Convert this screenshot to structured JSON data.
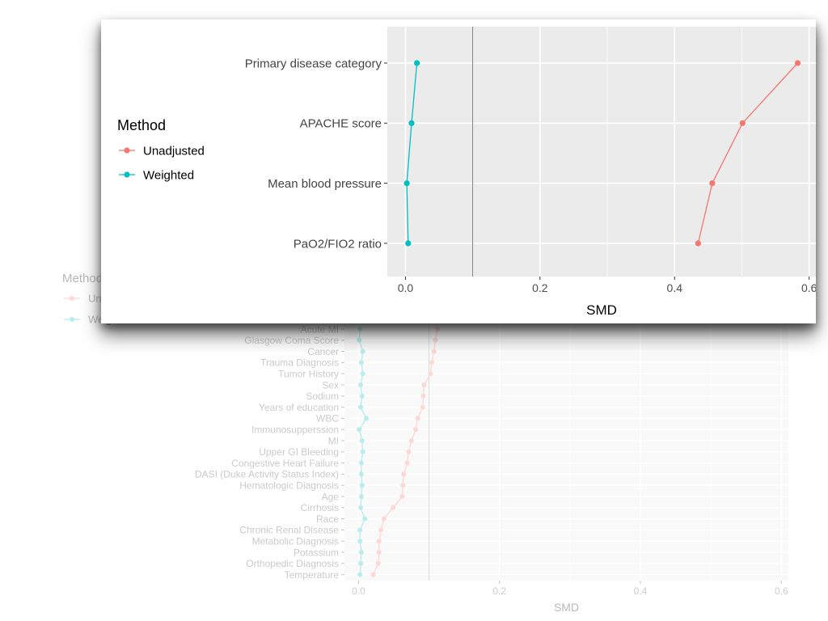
{
  "chart_data": [
    {
      "id": "background",
      "type": "line",
      "orientation": "horizontal",
      "xlabel": "SMD",
      "legend": {
        "title": "Method",
        "entries": [
          "Unadjusted",
          "Weighted"
        ],
        "placement": "left"
      },
      "xlim": [
        -0.02,
        0.61
      ],
      "xticks": [
        0.0,
        0.2,
        0.4,
        0.6
      ],
      "xtick_labels": [
        "0.0",
        "0.2",
        "0.4",
        "0.6"
      ],
      "reference_line": 0.1,
      "categories": [
        "Acute MI",
        "Glasgow Coma Score",
        "Cancer",
        "Trauma Diagnosis",
        "Tumor History",
        "Sex",
        "Sodium",
        "Years of education",
        "WBC",
        "Immunosupperssion",
        "MI",
        "Upper GI Bleeding",
        "Congestive Heart Failure",
        "DASI (Duke Activity Status Index)",
        "Hematologic Diagnosis",
        "Age",
        "Cirrhosis",
        "Race",
        "Chronic Renal Disease",
        "Metabolic Diagnosis",
        "Potassium",
        "Orthopedic Diagnosis",
        "Temperature"
      ],
      "series": [
        {
          "name": "Unadjusted",
          "values": [
            0.112,
            0.109,
            0.107,
            0.104,
            0.102,
            0.093,
            0.092,
            0.091,
            0.084,
            0.081,
            0.075,
            0.071,
            0.069,
            0.064,
            0.063,
            0.062,
            0.049,
            0.036,
            0.032,
            0.029,
            0.029,
            0.028,
            0.021
          ]
        },
        {
          "name": "Weighted",
          "values": [
            0.002,
            0.001,
            0.006,
            0.004,
            0.006,
            0.003,
            0.005,
            0.003,
            0.011,
            0.001,
            0.005,
            0.006,
            0.004,
            0.004,
            0.005,
            0.004,
            0.003,
            0.009,
            0.002,
            0.002,
            0.004,
            0.003,
            0.002
          ]
        }
      ],
      "colors": {
        "Unadjusted": "#f8766d",
        "Weighted": "#00bfc4"
      }
    },
    {
      "id": "zoom",
      "type": "line",
      "orientation": "horizontal",
      "xlabel": "SMD",
      "legend": {
        "title": "Method",
        "entries": [
          "Unadjusted",
          "Weighted"
        ],
        "placement": "left"
      },
      "xlim": [
        -0.027,
        0.61
      ],
      "xticks": [
        0.0,
        0.2,
        0.4,
        0.6
      ],
      "xtick_labels": [
        "0.0",
        "0.2",
        "0.4",
        "0.6"
      ],
      "reference_line": 0.1,
      "categories": [
        "Primary disease category",
        "APACHE score",
        "Mean blood pressure",
        "PaO2/FIO2 ratio"
      ],
      "series": [
        {
          "name": "Unadjusted",
          "values": [
            0.583,
            0.501,
            0.456,
            0.435
          ]
        },
        {
          "name": "Weighted",
          "values": [
            0.017,
            0.009,
            0.002,
            0.004
          ]
        }
      ],
      "colors": {
        "Unadjusted": "#f8766d",
        "Weighted": "#00bfc4"
      }
    }
  ]
}
